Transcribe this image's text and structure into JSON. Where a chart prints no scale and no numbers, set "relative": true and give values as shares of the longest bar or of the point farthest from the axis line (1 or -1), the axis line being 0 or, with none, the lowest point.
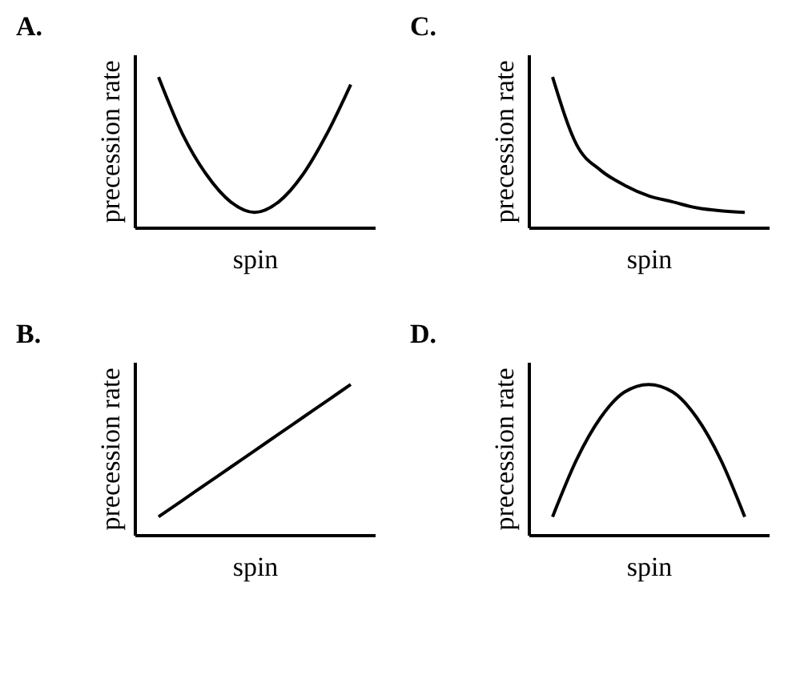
{
  "chart_data": [
    {
      "type": "line",
      "title": "A.",
      "xlabel": "spin",
      "ylabel": "precession rate",
      "relative": true,
      "categories": [
        null,
        null,
        null,
        null,
        null,
        null,
        null,
        null,
        null,
        null,
        null
      ],
      "series": [
        {
          "color": "#000000",
          "values": [
            null,
            1,
            0.62,
            0.35,
            0.17,
            0.1,
            0.17,
            0.35,
            0.62,
            0.95,
            null
          ]
        }
      ]
    },
    {
      "type": "line",
      "title": "C.",
      "xlabel": "spin",
      "ylabel": "precession rate",
      "relative": true,
      "categories": [
        null,
        null,
        null,
        null,
        null,
        null,
        null,
        null,
        null,
        null,
        null
      ],
      "series": [
        {
          "color": "#000000",
          "values": [
            null,
            1,
            0.55,
            0.38,
            0.28,
            0.21,
            0.17,
            0.13,
            0.11,
            0.1,
            null
          ]
        }
      ]
    },
    {
      "type": "line",
      "title": "B.",
      "xlabel": "spin",
      "ylabel": "precession rate",
      "relative": true,
      "categories": [
        null,
        null,
        null,
        null,
        null,
        null,
        null,
        null,
        null,
        null,
        null
      ],
      "series": [
        {
          "color": "#000000",
          "values": [
            null,
            0.12,
            0.23,
            0.34,
            0.45,
            0.56,
            0.67,
            0.78,
            0.89,
            1,
            null
          ]
        }
      ]
    },
    {
      "type": "line",
      "title": "D.",
      "xlabel": "spin",
      "ylabel": "precession rate",
      "relative": true,
      "categories": [
        null,
        null,
        null,
        null,
        null,
        null,
        null,
        null,
        null,
        null,
        null
      ],
      "series": [
        {
          "color": "#000000",
          "values": [
            null,
            0.12,
            0.5,
            0.78,
            0.95,
            1,
            0.95,
            0.78,
            0.5,
            0.12,
            null
          ]
        }
      ]
    }
  ]
}
